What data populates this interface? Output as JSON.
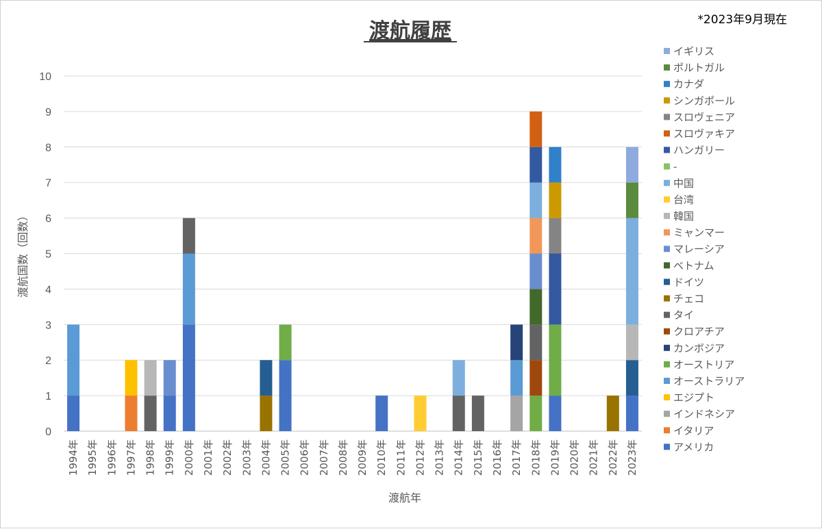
{
  "chart_data": {
    "type": "bar",
    "stacked": true,
    "title": "渡航履歴",
    "note": "*2023年9月現在",
    "xlabel": "渡航年",
    "ylabel": "渡航国数（回数）",
    "ylim": [
      0,
      10
    ],
    "yticks": [
      0,
      1,
      2,
      3,
      4,
      5,
      6,
      7,
      8,
      9,
      10
    ],
    "grid": true,
    "legend_position": "right",
    "categories": [
      "1994年",
      "1995年",
      "1996年",
      "1997年",
      "1998年",
      "1999年",
      "2000年",
      "2001年",
      "2002年",
      "2003年",
      "2004年",
      "2005年",
      "2006年",
      "2007年",
      "2008年",
      "2009年",
      "2010年",
      "2011年",
      "2012年",
      "2013年",
      "2014年",
      "2015年",
      "2016年",
      "2017年",
      "2018年",
      "2019年",
      "2020年",
      "2021年",
      "2022年",
      "2023年"
    ],
    "series": [
      {
        "name": "アメリカ",
        "color": "#4472C4",
        "values": [
          1,
          0,
          0,
          0,
          0,
          1,
          3,
          0,
          0,
          0,
          0,
          2,
          0,
          0,
          0,
          0,
          1,
          0,
          0,
          0,
          0,
          0,
          0,
          0,
          0,
          1,
          0,
          0,
          0,
          1
        ]
      },
      {
        "name": "イタリア",
        "color": "#ED7D31",
        "values": [
          0,
          0,
          0,
          1,
          0,
          0,
          0,
          0,
          0,
          0,
          0,
          0,
          0,
          0,
          0,
          0,
          0,
          0,
          0,
          0,
          0,
          0,
          0,
          0,
          0,
          0,
          0,
          0,
          0,
          0
        ]
      },
      {
        "name": "インドネシア",
        "color": "#A5A5A5",
        "values": [
          0,
          0,
          0,
          0,
          0,
          0,
          0,
          0,
          0,
          0,
          0,
          0,
          0,
          0,
          0,
          0,
          0,
          0,
          0,
          0,
          0,
          0,
          0,
          1,
          0,
          0,
          0,
          0,
          0,
          0
        ]
      },
      {
        "name": "エジプト",
        "color": "#FFC000",
        "values": [
          0,
          0,
          0,
          1,
          0,
          0,
          0,
          0,
          0,
          0,
          0,
          0,
          0,
          0,
          0,
          0,
          0,
          0,
          0,
          0,
          0,
          0,
          0,
          0,
          0,
          0,
          0,
          0,
          0,
          0
        ]
      },
      {
        "name": "オーストラリア",
        "color": "#5B9BD5",
        "values": [
          2,
          0,
          0,
          0,
          0,
          0,
          2,
          0,
          0,
          0,
          0,
          0,
          0,
          0,
          0,
          0,
          0,
          0,
          0,
          0,
          0,
          0,
          0,
          1,
          0,
          0,
          0,
          0,
          0,
          0
        ]
      },
      {
        "name": "オーストリア",
        "color": "#70AD47",
        "values": [
          0,
          0,
          0,
          0,
          0,
          0,
          0,
          0,
          0,
          0,
          0,
          1,
          0,
          0,
          0,
          0,
          0,
          0,
          0,
          0,
          0,
          0,
          0,
          0,
          1,
          2,
          0,
          0,
          0,
          0
        ]
      },
      {
        "name": "カンボジア",
        "color": "#264478",
        "values": [
          0,
          0,
          0,
          0,
          0,
          0,
          0,
          0,
          0,
          0,
          0,
          0,
          0,
          0,
          0,
          0,
          0,
          0,
          0,
          0,
          0,
          0,
          0,
          1,
          0,
          0,
          0,
          0,
          0,
          0
        ]
      },
      {
        "name": "クロアチア",
        "color": "#9E480E",
        "values": [
          0,
          0,
          0,
          0,
          0,
          0,
          0,
          0,
          0,
          0,
          0,
          0,
          0,
          0,
          0,
          0,
          0,
          0,
          0,
          0,
          0,
          0,
          0,
          0,
          1,
          0,
          0,
          0,
          0,
          0
        ]
      },
      {
        "name": "タイ",
        "color": "#636363",
        "values": [
          0,
          0,
          0,
          0,
          1,
          0,
          1,
          0,
          0,
          0,
          0,
          0,
          0,
          0,
          0,
          0,
          0,
          0,
          0,
          0,
          1,
          1,
          0,
          0,
          1,
          0,
          0,
          0,
          0,
          0
        ]
      },
      {
        "name": "チェコ",
        "color": "#997300",
        "values": [
          0,
          0,
          0,
          0,
          0,
          0,
          0,
          0,
          0,
          0,
          1,
          0,
          0,
          0,
          0,
          0,
          0,
          0,
          0,
          0,
          0,
          0,
          0,
          0,
          0,
          0,
          0,
          0,
          1,
          0
        ]
      },
      {
        "name": "ドイツ",
        "color": "#255E91",
        "values": [
          0,
          0,
          0,
          0,
          0,
          0,
          0,
          0,
          0,
          0,
          1,
          0,
          0,
          0,
          0,
          0,
          0,
          0,
          0,
          0,
          0,
          0,
          0,
          0,
          0,
          0,
          0,
          0,
          0,
          1
        ]
      },
      {
        "name": "ベトナム",
        "color": "#43682B",
        "values": [
          0,
          0,
          0,
          0,
          0,
          0,
          0,
          0,
          0,
          0,
          0,
          0,
          0,
          0,
          0,
          0,
          0,
          0,
          0,
          0,
          0,
          0,
          0,
          0,
          1,
          0,
          0,
          0,
          0,
          0
        ]
      },
      {
        "name": "マレーシア",
        "color": "#698ED0",
        "values": [
          0,
          0,
          0,
          0,
          0,
          1,
          0,
          0,
          0,
          0,
          0,
          0,
          0,
          0,
          0,
          0,
          0,
          0,
          0,
          0,
          0,
          0,
          0,
          0,
          1,
          0,
          0,
          0,
          0,
          0
        ]
      },
      {
        "name": "ミャンマー",
        "color": "#F1975A",
        "values": [
          0,
          0,
          0,
          0,
          0,
          0,
          0,
          0,
          0,
          0,
          0,
          0,
          0,
          0,
          0,
          0,
          0,
          0,
          0,
          0,
          0,
          0,
          0,
          0,
          1,
          0,
          0,
          0,
          0,
          0
        ]
      },
      {
        "name": "韓国",
        "color": "#B7B7B7",
        "values": [
          0,
          0,
          0,
          0,
          1,
          0,
          0,
          0,
          0,
          0,
          0,
          0,
          0,
          0,
          0,
          0,
          0,
          0,
          0,
          0,
          0,
          0,
          0,
          0,
          0,
          0,
          0,
          0,
          0,
          1
        ]
      },
      {
        "name": "台湾",
        "color": "#FFCD33",
        "values": [
          0,
          0,
          0,
          0,
          0,
          0,
          0,
          0,
          0,
          0,
          0,
          0,
          0,
          0,
          0,
          0,
          0,
          0,
          1,
          0,
          0,
          0,
          0,
          0,
          0,
          0,
          0,
          0,
          0,
          0
        ]
      },
      {
        "name": "中国",
        "color": "#7CAFDD",
        "values": [
          0,
          0,
          0,
          0,
          0,
          0,
          0,
          0,
          0,
          0,
          0,
          0,
          0,
          0,
          0,
          0,
          0,
          0,
          0,
          0,
          1,
          0,
          0,
          0,
          1,
          0,
          0,
          0,
          0,
          3
        ]
      },
      {
        "name": "-",
        "color": "#8CC168",
        "values": [
          0,
          0,
          0,
          0,
          0,
          0,
          0,
          0,
          0,
          0,
          0,
          0,
          0,
          0,
          0,
          0,
          0,
          0,
          0,
          0,
          0,
          0,
          0,
          0,
          0,
          0,
          0,
          0,
          0,
          0
        ]
      },
      {
        "name": "ハンガリー",
        "color": "#335AA1",
        "values": [
          0,
          0,
          0,
          0,
          0,
          0,
          0,
          0,
          0,
          0,
          0,
          0,
          0,
          0,
          0,
          0,
          0,
          0,
          0,
          0,
          0,
          0,
          0,
          0,
          1,
          2,
          0,
          0,
          0,
          0
        ]
      },
      {
        "name": "スロヴァキア",
        "color": "#D26012",
        "values": [
          0,
          0,
          0,
          0,
          0,
          0,
          0,
          0,
          0,
          0,
          0,
          0,
          0,
          0,
          0,
          0,
          0,
          0,
          0,
          0,
          0,
          0,
          0,
          0,
          1,
          0,
          0,
          0,
          0,
          0
        ]
      },
      {
        "name": "スロヴェニア",
        "color": "#848484",
        "values": [
          0,
          0,
          0,
          0,
          0,
          0,
          0,
          0,
          0,
          0,
          0,
          0,
          0,
          0,
          0,
          0,
          0,
          0,
          0,
          0,
          0,
          0,
          0,
          0,
          0,
          1,
          0,
          0,
          0,
          0
        ]
      },
      {
        "name": "シンガポール",
        "color": "#CC9A00",
        "values": [
          0,
          0,
          0,
          0,
          0,
          0,
          0,
          0,
          0,
          0,
          0,
          0,
          0,
          0,
          0,
          0,
          0,
          0,
          0,
          0,
          0,
          0,
          0,
          0,
          0,
          1,
          0,
          0,
          0,
          0
        ]
      },
      {
        "name": "カナダ",
        "color": "#3180CA",
        "values": [
          0,
          0,
          0,
          0,
          0,
          0,
          0,
          0,
          0,
          0,
          0,
          0,
          0,
          0,
          0,
          0,
          0,
          0,
          0,
          0,
          0,
          0,
          0,
          0,
          0,
          1,
          0,
          0,
          0,
          0
        ]
      },
      {
        "name": "ポルトガル",
        "color": "#5A8A3C",
        "values": [
          0,
          0,
          0,
          0,
          0,
          0,
          0,
          0,
          0,
          0,
          0,
          0,
          0,
          0,
          0,
          0,
          0,
          0,
          0,
          0,
          0,
          0,
          0,
          0,
          0,
          0,
          0,
          0,
          0,
          1
        ]
      },
      {
        "name": "イギリス",
        "color": "#8FAADC",
        "values": [
          0,
          0,
          0,
          0,
          0,
          0,
          0,
          0,
          0,
          0,
          0,
          0,
          0,
          0,
          0,
          0,
          0,
          0,
          0,
          0,
          0,
          0,
          0,
          0,
          0,
          0,
          0,
          0,
          0,
          1
        ]
      }
    ]
  }
}
